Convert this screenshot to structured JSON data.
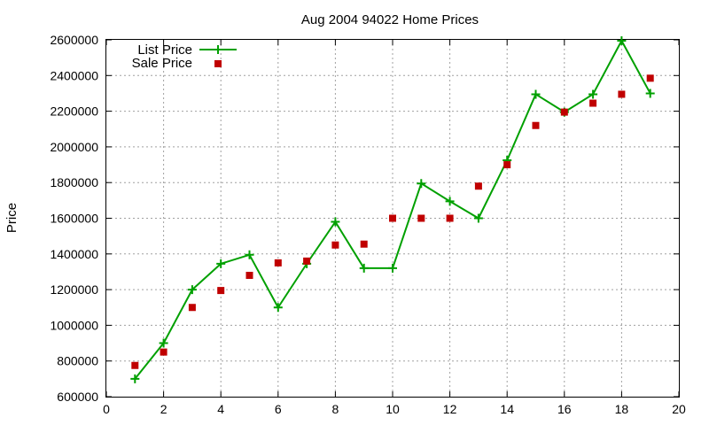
{
  "chart_data": {
    "type": "line",
    "title": "Aug 2004 94022 Home Prices",
    "xlabel": "",
    "ylabel": "Price",
    "xlim": [
      0,
      20
    ],
    "ylim": [
      600000,
      2600000
    ],
    "x_ticks": [
      0,
      2,
      4,
      6,
      8,
      10,
      12,
      14,
      16,
      18,
      20
    ],
    "y_ticks": [
      600000,
      800000,
      1000000,
      1200000,
      1400000,
      1600000,
      1800000,
      2000000,
      2200000,
      2400000,
      2600000
    ],
    "grid": true,
    "legend_position": "top-left",
    "series": [
      {
        "name": "List Price",
        "style": "line-points",
        "color": "#00a000",
        "x": [
          1,
          2,
          3,
          4,
          5,
          6,
          7,
          8,
          9,
          10,
          11,
          12,
          13,
          14,
          15,
          16,
          17,
          18,
          19
        ],
        "values": [
          700000,
          900000,
          1200000,
          1345000,
          1395000,
          1100000,
          1345000,
          1580000,
          1320000,
          1320000,
          1795000,
          1695000,
          1600000,
          1925000,
          2295000,
          2195000,
          2295000,
          2595000,
          2300000
        ]
      },
      {
        "name": "Sale Price",
        "style": "points",
        "color": "#c00000",
        "x": [
          1,
          2,
          3,
          4,
          5,
          6,
          7,
          8,
          9,
          10,
          11,
          12,
          13,
          14,
          15,
          16,
          17,
          18,
          19
        ],
        "values": [
          775000,
          850000,
          1100000,
          1195000,
          1280000,
          1350000,
          1360000,
          1450000,
          1455000,
          1600000,
          1600000,
          1600000,
          1780000,
          1900000,
          2120000,
          2195000,
          2245000,
          2295000,
          2385000
        ]
      }
    ]
  }
}
